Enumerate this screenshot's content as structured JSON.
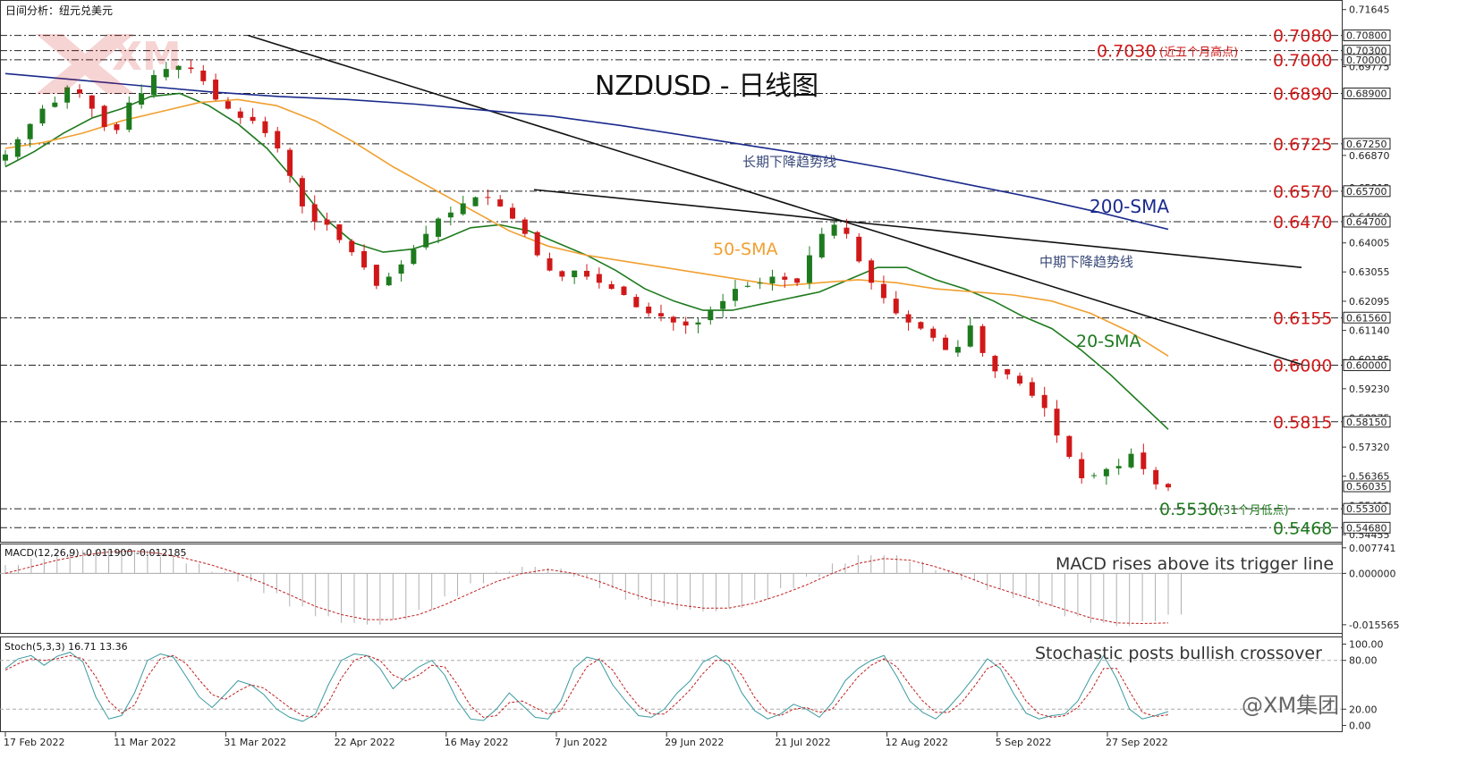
{
  "header": {
    "title": "日间分析：纽元兑美元"
  },
  "watermark": {
    "brand": "XM"
  },
  "chart_title": "NZDUSD - 日线图",
  "chart_data": [
    {
      "type": "candlestick",
      "title": "NZDUSD - 日线图",
      "x_labels": [
        "17 Feb 2022",
        "11 Mar 2022",
        "31 Mar 2022",
        "22 Apr 2022",
        "16 May 2022",
        "7 Jun 2022",
        "29 Jun 2022",
        "21 Jul 2022",
        "12 Aug 2022",
        "5 Sep 2022",
        "27 Sep 2022"
      ],
      "ylim": [
        0.5425,
        0.719
      ],
      "y_ticks": [
        "0.71645",
        "0.69775",
        "0.66870",
        "0.65815",
        "0.64860",
        "0.64005",
        "0.63055",
        "0.62095",
        "0.61140",
        "0.60185",
        "0.59230",
        "0.58275",
        "0.57320",
        "0.56365",
        "0.55410",
        "0.54455"
      ],
      "price_tags": [
        "0.70800",
        "0.70300",
        "0.70000",
        "0.68900",
        "0.67250",
        "0.65700",
        "0.64700",
        "0.61560",
        "0.60000",
        "0.58150",
        "0.56035",
        "0.55300",
        "0.54680"
      ],
      "last_close": "0.56035",
      "close_path": [
        0.669,
        0.674,
        0.679,
        0.684,
        0.686,
        0.691,
        0.689,
        0.684,
        0.678,
        0.677,
        0.686,
        0.689,
        0.695,
        0.697,
        0.698,
        0.697,
        0.693,
        0.687,
        0.684,
        0.681,
        0.68,
        0.676,
        0.671,
        0.662,
        0.652,
        0.647,
        0.646,
        0.641,
        0.637,
        0.632,
        0.626,
        0.629,
        0.633,
        0.638,
        0.643,
        0.648,
        0.65,
        0.653,
        0.655,
        0.655,
        0.652,
        0.648,
        0.643,
        0.636,
        0.631,
        0.629,
        0.631,
        0.629,
        0.627,
        0.625,
        0.623,
        0.619,
        0.617,
        0.616,
        0.614,
        0.613,
        0.614,
        0.618,
        0.621,
        0.625,
        0.626,
        0.627,
        0.629,
        0.628,
        0.627,
        0.636,
        0.643,
        0.646,
        0.643,
        0.634,
        0.627,
        0.622,
        0.617,
        0.614,
        0.612,
        0.609,
        0.605,
        0.606,
        0.613,
        0.604,
        0.598,
        0.597,
        0.594,
        0.59,
        0.586,
        0.577,
        0.57,
        0.563,
        0.564,
        0.566,
        0.567,
        0.571,
        0.566,
        0.561,
        0.56
      ],
      "series": [
        {
          "name": "20-SMA",
          "color": "#1e7a1e",
          "points": [
            0.665,
            0.67,
            0.676,
            0.681,
            0.684,
            0.688,
            0.689,
            0.685,
            0.679,
            0.671,
            0.66,
            0.648,
            0.64,
            0.637,
            0.638,
            0.641,
            0.645,
            0.646,
            0.644,
            0.64,
            0.636,
            0.631,
            0.625,
            0.621,
            0.618,
            0.618,
            0.62,
            0.622,
            0.624,
            0.628,
            0.632,
            0.632,
            0.628,
            0.625,
            0.621,
            0.616,
            0.612,
            0.605,
            0.597,
            0.588,
            0.579
          ]
        },
        {
          "name": "50-SMA",
          "color": "#f0a030",
          "points": [
            0.671,
            0.673,
            0.676,
            0.68,
            0.683,
            0.686,
            0.687,
            0.685,
            0.68,
            0.673,
            0.665,
            0.658,
            0.651,
            0.644,
            0.639,
            0.636,
            0.634,
            0.632,
            0.63,
            0.628,
            0.626,
            0.627,
            0.628,
            0.627,
            0.625,
            0.624,
            0.623,
            0.621,
            0.617,
            0.611,
            0.603
          ]
        },
        {
          "name": "200-SMA",
          "color": "#1a2a8c",
          "points": [
            0.6955,
            0.6935,
            0.6915,
            0.6895,
            0.688,
            0.687,
            0.6855,
            0.6835,
            0.6815,
            0.6785,
            0.675,
            0.6715,
            0.668,
            0.664,
            0.6595,
            0.655,
            0.65,
            0.6445
          ]
        }
      ],
      "trendlines": [
        {
          "name": "长期下降趋势线",
          "from": [
            0.708,
            "31 Mar 2022"
          ],
          "to": [
            0.6445,
            "12 Aug 2022"
          ]
        },
        {
          "name": "中期下降趋势线",
          "from": [
            0.6575,
            "7 Jun 2022"
          ],
          "to": [
            0.632,
            "27 Sep 2022"
          ]
        }
      ],
      "levels": [
        {
          "value": "0.7080",
          "color": "#d01818"
        },
        {
          "value": "0.7030",
          "label": "(近五个月高点)",
          "color": "#d01818"
        },
        {
          "value": "0.7000",
          "color": "#d01818"
        },
        {
          "value": "0.6890",
          "color": "#d01818"
        },
        {
          "value": "0.6725",
          "color": "#d01818"
        },
        {
          "value": "0.6570",
          "color": "#d01818"
        },
        {
          "value": "0.6470",
          "color": "#d01818"
        },
        {
          "value": "0.6155",
          "color": "#d01818"
        },
        {
          "value": "0.6000",
          "color": "#d01818"
        },
        {
          "value": "0.5815",
          "color": "#d01818"
        },
        {
          "value": "0.5530",
          "label": "(31个月低点)",
          "color": "#1e7a1e"
        },
        {
          "value": "0.5468",
          "color": "#1e7a1e"
        }
      ],
      "annotations": [
        "长期下降趋势线",
        "中期下降趋势线",
        "200-SMA",
        "50-SMA",
        "20-SMA"
      ],
      "up_color": "#1e7a1e",
      "down_color": "#d01818"
    },
    {
      "type": "macd",
      "label": "MACD(12,26,9) -0.011900 -0.012185",
      "annotation": "MACD rises above its trigger line",
      "ylim": [
        -0.0175,
        0.0085
      ],
      "y_ticks": [
        "0.007741",
        "0.000000",
        "-0.015565"
      ],
      "histogram": [
        0.0025,
        0.0045,
        0.0062,
        0.0072,
        0.0075,
        0.007,
        0.005,
        0.003,
        0.0005,
        -0.0025,
        -0.006,
        -0.01,
        -0.013,
        -0.015,
        -0.0155,
        -0.014,
        -0.011,
        -0.007,
        -0.003,
        0.0005,
        0.002,
        0.0015,
        -0.001,
        -0.0045,
        -0.008,
        -0.01,
        -0.011,
        -0.0115,
        -0.0105,
        -0.008,
        -0.0045,
        -0.001,
        0.003,
        0.0055,
        0.0055,
        0.0035,
        0.001,
        -0.002,
        -0.005,
        -0.0075,
        -0.01,
        -0.013,
        -0.015,
        -0.016,
        -0.0145,
        -0.0125
      ],
      "signal": [
        0.0,
        0.002,
        0.004,
        0.0055,
        0.0065,
        0.0068,
        0.006,
        0.0045,
        0.0025,
        0.0,
        -0.003,
        -0.0065,
        -0.01,
        -0.0125,
        -0.014,
        -0.014,
        -0.0125,
        -0.0095,
        -0.006,
        -0.0025,
        0.0,
        0.0012,
        0.0,
        -0.0025,
        -0.0055,
        -0.008,
        -0.0095,
        -0.0105,
        -0.0105,
        -0.009,
        -0.0065,
        -0.0035,
        0.0,
        0.003,
        0.0045,
        0.004,
        0.002,
        -0.0005,
        -0.0035,
        -0.006,
        -0.0085,
        -0.011,
        -0.0135,
        -0.015,
        -0.0152,
        -0.015
      ]
    },
    {
      "type": "stochastic",
      "label": "Stoch(5,3,3) 16.71 13.36",
      "annotation": "Stochastic posts bullish crossover",
      "ylim": [
        -5,
        105
      ],
      "y_ticks": [
        "100.00",
        "80.00",
        "20.00",
        "0.00"
      ],
      "k": [
        70,
        82,
        86,
        74,
        85,
        90,
        78,
        35,
        8,
        12,
        40,
        80,
        88,
        84,
        60,
        35,
        22,
        38,
        55,
        50,
        38,
        20,
        10,
        5,
        14,
        50,
        80,
        88,
        86,
        70,
        45,
        60,
        72,
        80,
        62,
        30,
        8,
        6,
        20,
        40,
        25,
        10,
        8,
        30,
        70,
        84,
        80,
        50,
        30,
        12,
        10,
        20,
        40,
        55,
        78,
        86,
        74,
        40,
        18,
        8,
        14,
        26,
        20,
        10,
        28,
        55,
        70,
        80,
        86,
        60,
        30,
        16,
        8,
        22,
        40,
        60,
        82,
        70,
        40,
        15,
        8,
        12,
        14,
        30,
        60,
        86,
        58,
        20,
        8,
        12,
        17
      ],
      "d": [
        68,
        76,
        82,
        80,
        82,
        86,
        82,
        60,
        30,
        15,
        25,
        60,
        82,
        86,
        76,
        56,
        38,
        32,
        42,
        50,
        46,
        34,
        22,
        12,
        10,
        28,
        58,
        80,
        86,
        80,
        62,
        55,
        62,
        74,
        72,
        50,
        24,
        10,
        12,
        28,
        30,
        22,
        14,
        18,
        46,
        72,
        82,
        68,
        44,
        24,
        14,
        14,
        28,
        44,
        64,
        80,
        80,
        62,
        34,
        16,
        12,
        20,
        22,
        16,
        20,
        40,
        60,
        74,
        82,
        72,
        50,
        30,
        16,
        16,
        28,
        48,
        70,
        76,
        56,
        30,
        14,
        10,
        12,
        22,
        42,
        70,
        70,
        42,
        16,
        11,
        13
      ]
    }
  ],
  "brand_footer": "@XM集团"
}
